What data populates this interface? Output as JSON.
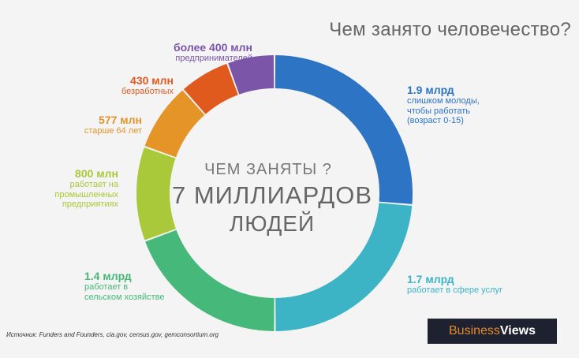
{
  "title": "Чем занято человечество?",
  "center": {
    "line1": "ЧЕМ ЗАНЯТЫ ?",
    "line2": "7 МИЛЛИАРДОВ",
    "line3": "ЛЮДЕЙ"
  },
  "source": "Источник: Funders and Founders, cia.gov, census.gov, gemconsortium.org",
  "logo": {
    "part1": "Business",
    "part2": "Views"
  },
  "chart_data": {
    "type": "pie",
    "title": "Чем занято человечество?",
    "donut": true,
    "categories": [
      "слишком молоды, чтобы работать (возраст 0-15)",
      "работает в сфере услуг",
      "работает в сельском хозяйстве",
      "работает на промышленных предприятиях",
      "старше 64 лет",
      "безработных",
      "предпринимателей"
    ],
    "values": [
      1900,
      1700,
      1400,
      800,
      577,
      430,
      400
    ],
    "value_labels": [
      "1.9 млрд",
      "1.7 млрд",
      "1.4 млрд",
      "800 млн",
      "577 млн",
      "430 млн",
      "более 400 млн"
    ],
    "colors": [
      "#2e74c4",
      "#3cb4c6",
      "#46b97a",
      "#a9c93a",
      "#e59428",
      "#e05a1e",
      "#7b56a8"
    ],
    "desc_lines": [
      [
        "слишком молоды,",
        "чтобы работать",
        "(возраст 0-15)"
      ],
      [
        "работает в сфере услуг"
      ],
      [
        "работает в",
        "сельском хозяйстве"
      ],
      [
        "работает на",
        "промышленных",
        "предприятиях"
      ],
      [
        "старше 64 лет"
      ],
      [
        "безработных"
      ],
      [
        "предпринимателей"
      ]
    ]
  }
}
